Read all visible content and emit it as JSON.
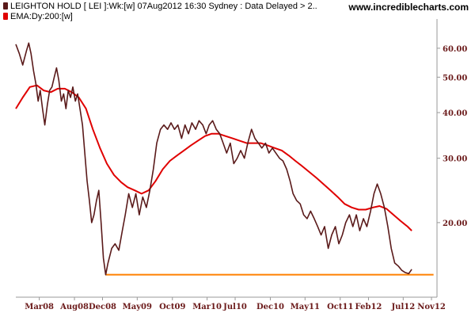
{
  "header": {
    "title": "LEIGHTON HOLD [ LEI ]:Wk:[w]  07Aug2012 16:30 Sydney : Data Delayed > 2..",
    "ema_label": "EMA:Dy:200:[w]",
    "site": "www.incrediblecharts.com"
  },
  "colors": {
    "price": "#5a1a1a",
    "ema": "#e00000",
    "support": "#ff8000",
    "axis_text": "#6b1a1a"
  },
  "chart_data": {
    "type": "line",
    "scale": "log",
    "ylim": [
      12.5,
      70
    ],
    "yticks": [
      20,
      30,
      40,
      50,
      60
    ],
    "ytick_labels": [
      "20.00",
      "30.00",
      "40.00",
      "50.00",
      "60.00"
    ],
    "x_range": [
      "2007-11-20",
      "2012-11-25"
    ],
    "xticks": [
      {
        "date": "2008-03-01",
        "label": "Mar08"
      },
      {
        "date": "2008-08-01",
        "label": "Aug08"
      },
      {
        "date": "2008-12-01",
        "label": "Dec08"
      },
      {
        "date": "2009-05-01",
        "label": "May09"
      },
      {
        "date": "2009-10-01",
        "label": "Oct09"
      },
      {
        "date": "2010-03-01",
        "label": "Mar10"
      },
      {
        "date": "2010-07-01",
        "label": "Jul10"
      },
      {
        "date": "2010-12-01",
        "label": "Dec10"
      },
      {
        "date": "2011-05-01",
        "label": "May11"
      },
      {
        "date": "2011-10-01",
        "label": "Oct11"
      },
      {
        "date": "2012-02-01",
        "label": "Feb12"
      },
      {
        "date": "2012-07-01",
        "label": "Jul12"
      },
      {
        "date": "2012-11-01",
        "label": "Nov12"
      }
    ],
    "series": [
      {
        "name": "LEIGHTON HOLD [ LEI ]",
        "points": [
          [
            "2007-11-20",
            61.5
          ],
          [
            "2007-12-05",
            58
          ],
          [
            "2007-12-20",
            54
          ],
          [
            "2008-01-05",
            59
          ],
          [
            "2008-01-15",
            62
          ],
          [
            "2008-01-25",
            58
          ],
          [
            "2008-02-05",
            52
          ],
          [
            "2008-02-15",
            48
          ],
          [
            "2008-02-25",
            43
          ],
          [
            "2008-03-05",
            46
          ],
          [
            "2008-03-15",
            41
          ],
          [
            "2008-03-25",
            37
          ],
          [
            "2008-04-05",
            42
          ],
          [
            "2008-04-15",
            46
          ],
          [
            "2008-04-25",
            47
          ],
          [
            "2008-05-05",
            50
          ],
          [
            "2008-05-15",
            53
          ],
          [
            "2008-05-25",
            49
          ],
          [
            "2008-06-05",
            43
          ],
          [
            "2008-06-15",
            45
          ],
          [
            "2008-06-25",
            41
          ],
          [
            "2008-07-05",
            46
          ],
          [
            "2008-07-15",
            44
          ],
          [
            "2008-07-25",
            47
          ],
          [
            "2008-08-05",
            43
          ],
          [
            "2008-08-15",
            45
          ],
          [
            "2008-08-25",
            41
          ],
          [
            "2008-09-05",
            37
          ],
          [
            "2008-09-15",
            31
          ],
          [
            "2008-09-25",
            26
          ],
          [
            "2008-10-05",
            23
          ],
          [
            "2008-10-15",
            20
          ],
          [
            "2008-10-25",
            21
          ],
          [
            "2008-11-05",
            23
          ],
          [
            "2008-11-15",
            24.5
          ],
          [
            "2008-11-25",
            20
          ],
          [
            "2008-12-05",
            16
          ],
          [
            "2008-12-15",
            14.4
          ],
          [
            "2008-12-25",
            15.5
          ],
          [
            "2009-01-10",
            17
          ],
          [
            "2009-01-25",
            17.5
          ],
          [
            "2009-02-10",
            16.8
          ],
          [
            "2009-02-25",
            19
          ],
          [
            "2009-03-10",
            21
          ],
          [
            "2009-03-25",
            24
          ],
          [
            "2009-04-10",
            22
          ],
          [
            "2009-04-25",
            24
          ],
          [
            "2009-05-10",
            21
          ],
          [
            "2009-05-25",
            23.5
          ],
          [
            "2009-06-10",
            22
          ],
          [
            "2009-06-25",
            24.5
          ],
          [
            "2009-07-10",
            28
          ],
          [
            "2009-07-25",
            33
          ],
          [
            "2009-08-10",
            36
          ],
          [
            "2009-08-25",
            37
          ],
          [
            "2009-09-10",
            36
          ],
          [
            "2009-09-25",
            37.5
          ],
          [
            "2009-10-10",
            36
          ],
          [
            "2009-10-25",
            37
          ],
          [
            "2009-11-10",
            34
          ],
          [
            "2009-11-25",
            37
          ],
          [
            "2009-12-10",
            35
          ],
          [
            "2009-12-25",
            37.5
          ],
          [
            "2010-01-10",
            36
          ],
          [
            "2010-01-25",
            38
          ],
          [
            "2010-02-10",
            37
          ],
          [
            "2010-02-25",
            35
          ],
          [
            "2010-03-10",
            37
          ],
          [
            "2010-03-25",
            38
          ],
          [
            "2010-04-10",
            36
          ],
          [
            "2010-04-25",
            35
          ],
          [
            "2010-05-10",
            33
          ],
          [
            "2010-05-25",
            31
          ],
          [
            "2010-06-10",
            33
          ],
          [
            "2010-06-25",
            29
          ],
          [
            "2010-07-10",
            30
          ],
          [
            "2010-07-25",
            31.5
          ],
          [
            "2010-08-10",
            30
          ],
          [
            "2010-08-25",
            33
          ],
          [
            "2010-09-10",
            36
          ],
          [
            "2010-09-25",
            34
          ],
          [
            "2010-10-10",
            33
          ],
          [
            "2010-10-25",
            32
          ],
          [
            "2010-11-10",
            33
          ],
          [
            "2010-11-25",
            31
          ],
          [
            "2010-12-10",
            32
          ],
          [
            "2010-12-25",
            31
          ],
          [
            "2011-01-10",
            30
          ],
          [
            "2011-01-25",
            29.5
          ],
          [
            "2011-02-10",
            28
          ],
          [
            "2011-02-25",
            26
          ],
          [
            "2011-03-10",
            24
          ],
          [
            "2011-03-25",
            23
          ],
          [
            "2011-04-10",
            22.5
          ],
          [
            "2011-04-25",
            21
          ],
          [
            "2011-05-10",
            20.5
          ],
          [
            "2011-05-25",
            21.5
          ],
          [
            "2011-06-10",
            20.5
          ],
          [
            "2011-06-25",
            19.5
          ],
          [
            "2011-07-10",
            18.5
          ],
          [
            "2011-07-25",
            19.5
          ],
          [
            "2011-08-10",
            17
          ],
          [
            "2011-08-25",
            18.5
          ],
          [
            "2011-09-10",
            19.5
          ],
          [
            "2011-09-25",
            17.5
          ],
          [
            "2011-10-10",
            18.5
          ],
          [
            "2011-10-25",
            20
          ],
          [
            "2011-11-10",
            21
          ],
          [
            "2011-11-25",
            19.5
          ],
          [
            "2011-12-10",
            21
          ],
          [
            "2011-12-25",
            19
          ],
          [
            "2012-01-10",
            20.5
          ],
          [
            "2012-01-25",
            19.5
          ],
          [
            "2012-02-10",
            21.5
          ],
          [
            "2012-02-25",
            24
          ],
          [
            "2012-03-10",
            25.5
          ],
          [
            "2012-03-25",
            24
          ],
          [
            "2012-04-10",
            22
          ],
          [
            "2012-04-25",
            19.5
          ],
          [
            "2012-05-10",
            17
          ],
          [
            "2012-05-25",
            15.5
          ],
          [
            "2012-06-10",
            15.2
          ],
          [
            "2012-06-25",
            14.8
          ],
          [
            "2012-07-10",
            14.6
          ],
          [
            "2012-07-25",
            14.5
          ],
          [
            "2012-08-07",
            14.9
          ]
        ]
      },
      {
        "name": "EMA:Dy:200:[w]",
        "points": [
          [
            "2007-11-20",
            41
          ],
          [
            "2007-12-20",
            44
          ],
          [
            "2008-01-20",
            47
          ],
          [
            "2008-02-20",
            47.5
          ],
          [
            "2008-03-20",
            46
          ],
          [
            "2008-04-20",
            45.5
          ],
          [
            "2008-05-20",
            46.5
          ],
          [
            "2008-06-20",
            46.5
          ],
          [
            "2008-07-20",
            45.5
          ],
          [
            "2008-08-20",
            44
          ],
          [
            "2008-09-20",
            41
          ],
          [
            "2008-10-20",
            36
          ],
          [
            "2008-11-20",
            32
          ],
          [
            "2008-12-20",
            29
          ],
          [
            "2009-01-20",
            27
          ],
          [
            "2009-02-20",
            25.8
          ],
          [
            "2009-03-20",
            25
          ],
          [
            "2009-04-20",
            24.5
          ],
          [
            "2009-05-20",
            24
          ],
          [
            "2009-06-20",
            24.5
          ],
          [
            "2009-07-20",
            26
          ],
          [
            "2009-08-20",
            28
          ],
          [
            "2009-09-20",
            29.5
          ],
          [
            "2009-10-20",
            30.5
          ],
          [
            "2009-11-20",
            31.5
          ],
          [
            "2009-12-20",
            32.5
          ],
          [
            "2010-01-20",
            33.5
          ],
          [
            "2010-02-20",
            34.5
          ],
          [
            "2010-03-20",
            35
          ],
          [
            "2010-04-20",
            35
          ],
          [
            "2010-05-20",
            34.5
          ],
          [
            "2010-06-20",
            34
          ],
          [
            "2010-07-20",
            33.5
          ],
          [
            "2010-08-20",
            33
          ],
          [
            "2010-09-20",
            33
          ],
          [
            "2010-10-20",
            33
          ],
          [
            "2010-11-20",
            32.5
          ],
          [
            "2010-12-20",
            32
          ],
          [
            "2011-01-20",
            31.5
          ],
          [
            "2011-02-20",
            30.5
          ],
          [
            "2011-03-20",
            29.5
          ],
          [
            "2011-04-20",
            28.5
          ],
          [
            "2011-05-20",
            27.5
          ],
          [
            "2011-06-20",
            26.5
          ],
          [
            "2011-07-20",
            25.5
          ],
          [
            "2011-08-20",
            24.5
          ],
          [
            "2011-09-20",
            23.5
          ],
          [
            "2011-10-20",
            22.5
          ],
          [
            "2011-11-20",
            22
          ],
          [
            "2011-12-20",
            21.7
          ],
          [
            "2012-01-20",
            21.7
          ],
          [
            "2012-02-20",
            22
          ],
          [
            "2012-03-20",
            22.2
          ],
          [
            "2012-04-20",
            21.8
          ],
          [
            "2012-05-20",
            21
          ],
          [
            "2012-06-20",
            20.2
          ],
          [
            "2012-07-20",
            19.5
          ],
          [
            "2012-08-07",
            19
          ]
        ]
      }
    ],
    "reference_lines": [
      {
        "y": 14.4,
        "x_start": "2008-12-15",
        "x_end": "2012-11-10"
      }
    ],
    "xlabel": "",
    "ylabel": "",
    "grid": false,
    "legend": "top-left"
  }
}
